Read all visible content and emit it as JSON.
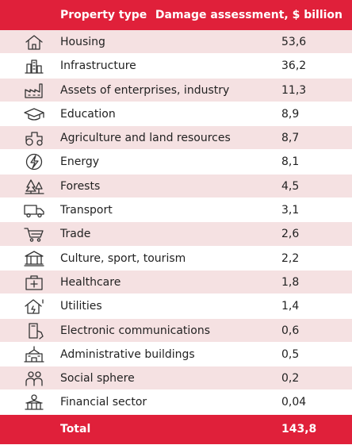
{
  "header": {
    "type_label": "Property type",
    "value_label": "Damage assessment, $ billion"
  },
  "rows": [
    {
      "icon": "house-icon",
      "label": "Housing",
      "value": "53,6"
    },
    {
      "icon": "city-buildings-icon",
      "label": "Infrastructure",
      "value": "36,2"
    },
    {
      "icon": "factory-icon",
      "label": "Assets of enterprises, industry",
      "value": "11,3"
    },
    {
      "icon": "graduation-cap-icon",
      "label": "Education",
      "value": "8,9"
    },
    {
      "icon": "tractor-icon",
      "label": "Agriculture and land resources",
      "value": "8,7"
    },
    {
      "icon": "lightning-icon",
      "label": "Energy",
      "value": "8,1"
    },
    {
      "icon": "trees-icon",
      "label": "Forests",
      "value": "4,5"
    },
    {
      "icon": "truck-icon",
      "label": "Transport",
      "value": "3,1"
    },
    {
      "icon": "shopping-cart-icon",
      "label": "Trade",
      "value": "2,6"
    },
    {
      "icon": "museum-icon",
      "label": "Culture, sport, tourism",
      "value": "2,2"
    },
    {
      "icon": "medical-kit-icon",
      "label": "Healthcare",
      "value": "1,8"
    },
    {
      "icon": "house-plug-icon",
      "label": "Utilities",
      "value": "1,4"
    },
    {
      "icon": "phone-hand-icon",
      "label": "Electronic communications",
      "value": "0,6"
    },
    {
      "icon": "government-building-icon",
      "label": "Administrative buildings",
      "value": "0,5"
    },
    {
      "icon": "people-icon",
      "label": "Social sphere",
      "value": "0,2"
    },
    {
      "icon": "bank-icon",
      "label": "Financial sector",
      "value": "0,04"
    }
  ],
  "total": {
    "label": "Total",
    "value": "143,8"
  },
  "colors": {
    "accent": "#e0203a",
    "stripe": "#f5e1e2"
  }
}
